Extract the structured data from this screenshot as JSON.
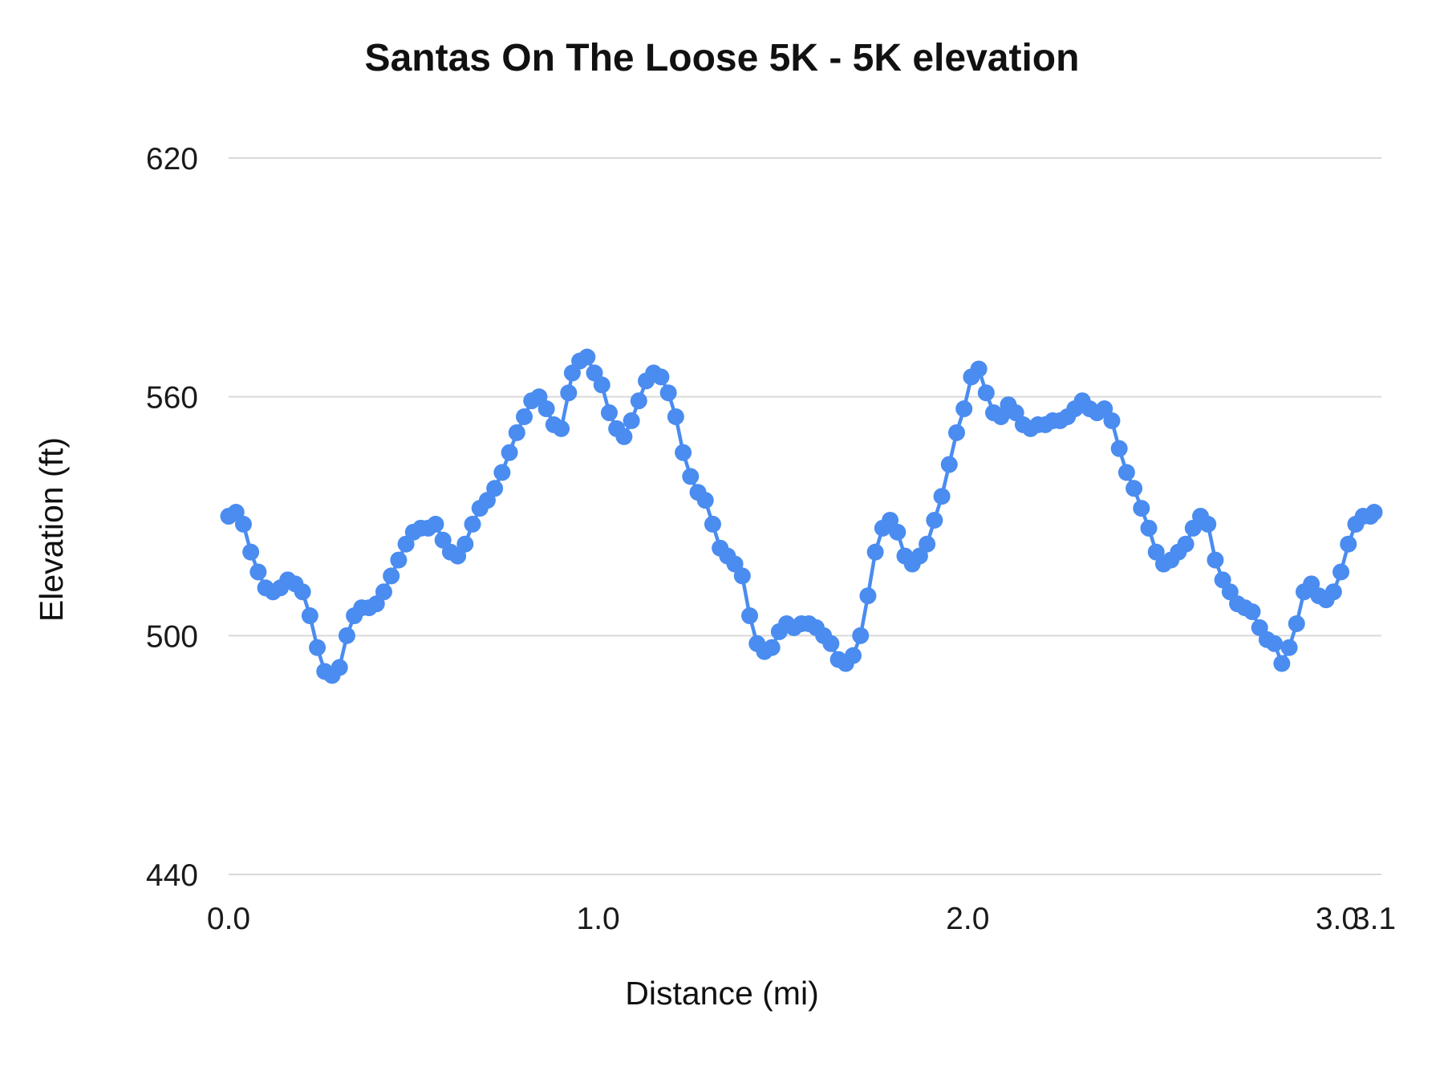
{
  "chart_data": {
    "type": "line",
    "title": "Santas On The Loose 5K - 5K elevation",
    "xlabel": "Distance (mi)",
    "ylabel": "Elevation (ft)",
    "xlim": [
      0,
      3.1
    ],
    "ylim": [
      440,
      620
    ],
    "grid": "horizontal",
    "legend": "none",
    "line_color": "#4a8cf0",
    "grid_color": "#d9d9d9",
    "point_radius": 10.5,
    "line_width": 4.5,
    "yticks": [
      {
        "v": 440,
        "label": "440"
      },
      {
        "v": 500,
        "label": "500"
      },
      {
        "v": 560,
        "label": "560"
      },
      {
        "v": 620,
        "label": "620"
      }
    ],
    "xticks": [
      {
        "v": 0.0,
        "label": "0.0"
      },
      {
        "v": 1.0,
        "label": "1.0"
      },
      {
        "v": 2.0,
        "label": "2.0"
      },
      {
        "v": 3.0,
        "label": "3.0"
      },
      {
        "v": 3.1,
        "label": "3.1"
      }
    ],
    "series": [
      {
        "name": "elevation",
        "points": [
          [
            0.0,
            530
          ],
          [
            0.02,
            531
          ],
          [
            0.04,
            528
          ],
          [
            0.06,
            521
          ],
          [
            0.08,
            516
          ],
          [
            0.1,
            512
          ],
          [
            0.12,
            511
          ],
          [
            0.14,
            512
          ],
          [
            0.16,
            514
          ],
          [
            0.18,
            513
          ],
          [
            0.2,
            511
          ],
          [
            0.22,
            505
          ],
          [
            0.24,
            497
          ],
          [
            0.26,
            491
          ],
          [
            0.28,
            490
          ],
          [
            0.3,
            492
          ],
          [
            0.32,
            500
          ],
          [
            0.34,
            505
          ],
          [
            0.36,
            507
          ],
          [
            0.38,
            507
          ],
          [
            0.4,
            508
          ],
          [
            0.42,
            511
          ],
          [
            0.44,
            515
          ],
          [
            0.46,
            519
          ],
          [
            0.48,
            523
          ],
          [
            0.5,
            526
          ],
          [
            0.52,
            527
          ],
          [
            0.54,
            527
          ],
          [
            0.56,
            528
          ],
          [
            0.58,
            524
          ],
          [
            0.6,
            521
          ],
          [
            0.62,
            520
          ],
          [
            0.64,
            523
          ],
          [
            0.66,
            528
          ],
          [
            0.68,
            532
          ],
          [
            0.7,
            534
          ],
          [
            0.72,
            537
          ],
          [
            0.74,
            541
          ],
          [
            0.76,
            546
          ],
          [
            0.78,
            551
          ],
          [
            0.8,
            555
          ],
          [
            0.82,
            559
          ],
          [
            0.84,
            560
          ],
          [
            0.86,
            557
          ],
          [
            0.88,
            553
          ],
          [
            0.9,
            552
          ],
          [
            0.92,
            561
          ],
          [
            0.93,
            566
          ],
          [
            0.95,
            569
          ],
          [
            0.97,
            570
          ],
          [
            0.99,
            566
          ],
          [
            1.01,
            563
          ],
          [
            1.03,
            556
          ],
          [
            1.05,
            552
          ],
          [
            1.07,
            550
          ],
          [
            1.09,
            554
          ],
          [
            1.11,
            559
          ],
          [
            1.13,
            564
          ],
          [
            1.15,
            566
          ],
          [
            1.17,
            565
          ],
          [
            1.19,
            561
          ],
          [
            1.21,
            555
          ],
          [
            1.23,
            546
          ],
          [
            1.25,
            540
          ],
          [
            1.27,
            536
          ],
          [
            1.29,
            534
          ],
          [
            1.31,
            528
          ],
          [
            1.33,
            522
          ],
          [
            1.35,
            520
          ],
          [
            1.37,
            518
          ],
          [
            1.39,
            515
          ],
          [
            1.41,
            505
          ],
          [
            1.43,
            498
          ],
          [
            1.45,
            496
          ],
          [
            1.47,
            497
          ],
          [
            1.49,
            501
          ],
          [
            1.51,
            503
          ],
          [
            1.53,
            502
          ],
          [
            1.55,
            503
          ],
          [
            1.57,
            503
          ],
          [
            1.59,
            502
          ],
          [
            1.61,
            500
          ],
          [
            1.63,
            498
          ],
          [
            1.65,
            494
          ],
          [
            1.67,
            493
          ],
          [
            1.69,
            495
          ],
          [
            1.71,
            500
          ],
          [
            1.73,
            510
          ],
          [
            1.75,
            521
          ],
          [
            1.77,
            527
          ],
          [
            1.79,
            529
          ],
          [
            1.81,
            526
          ],
          [
            1.83,
            520
          ],
          [
            1.85,
            518
          ],
          [
            1.87,
            520
          ],
          [
            1.89,
            523
          ],
          [
            1.91,
            529
          ],
          [
            1.93,
            535
          ],
          [
            1.95,
            543
          ],
          [
            1.97,
            551
          ],
          [
            1.99,
            557
          ],
          [
            2.01,
            565
          ],
          [
            2.03,
            567
          ],
          [
            2.05,
            561
          ],
          [
            2.07,
            556
          ],
          [
            2.09,
            555
          ],
          [
            2.11,
            558
          ],
          [
            2.13,
            556
          ],
          [
            2.15,
            553
          ],
          [
            2.17,
            552
          ],
          [
            2.19,
            553
          ],
          [
            2.21,
            553
          ],
          [
            2.23,
            554
          ],
          [
            2.25,
            554
          ],
          [
            2.27,
            555
          ],
          [
            2.29,
            557
          ],
          [
            2.31,
            559
          ],
          [
            2.33,
            557
          ],
          [
            2.35,
            556
          ],
          [
            2.37,
            557
          ],
          [
            2.39,
            554
          ],
          [
            2.41,
            547
          ],
          [
            2.43,
            541
          ],
          [
            2.45,
            537
          ],
          [
            2.47,
            532
          ],
          [
            2.49,
            527
          ],
          [
            2.51,
            521
          ],
          [
            2.53,
            518
          ],
          [
            2.55,
            519
          ],
          [
            2.57,
            521
          ],
          [
            2.59,
            523
          ],
          [
            2.61,
            527
          ],
          [
            2.63,
            530
          ],
          [
            2.65,
            528
          ],
          [
            2.67,
            519
          ],
          [
            2.69,
            514
          ],
          [
            2.71,
            511
          ],
          [
            2.73,
            508
          ],
          [
            2.75,
            507
          ],
          [
            2.77,
            506
          ],
          [
            2.79,
            502
          ],
          [
            2.81,
            499
          ],
          [
            2.83,
            498
          ],
          [
            2.85,
            493
          ],
          [
            2.87,
            497
          ],
          [
            2.89,
            503
          ],
          [
            2.91,
            511
          ],
          [
            2.93,
            513
          ],
          [
            2.95,
            510
          ],
          [
            2.97,
            509
          ],
          [
            2.99,
            511
          ],
          [
            3.01,
            516
          ],
          [
            3.03,
            523
          ],
          [
            3.05,
            528
          ],
          [
            3.07,
            530
          ],
          [
            3.09,
            530
          ],
          [
            3.1,
            531
          ]
        ]
      }
    ]
  }
}
